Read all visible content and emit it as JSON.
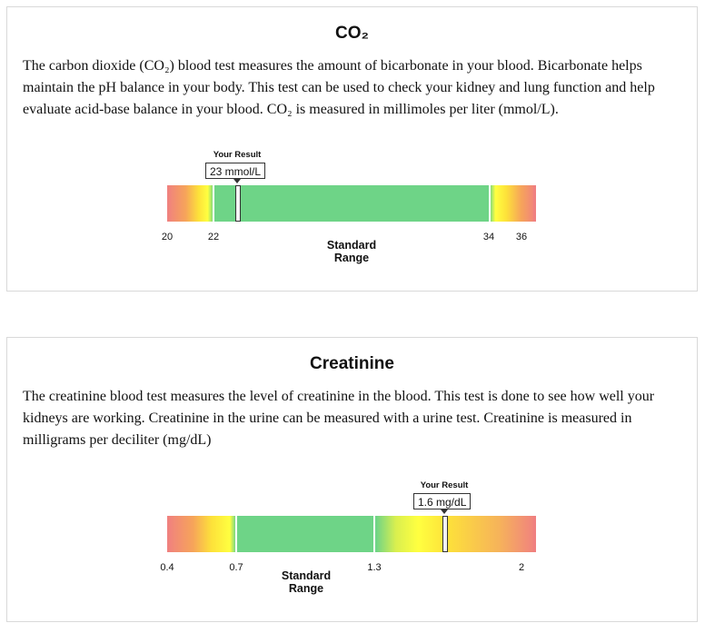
{
  "cards": [
    {
      "title": "CO₂",
      "description": "The carbon dioxide (CO₂) blood test measures the amount of bicarbonate in your blood. Bicarbonate helps maintain the pH balance in your body. This test can be used to check your kidney and lung function and help evaluate acid-base balance in your blood. CO₂ is measured in millimoles per liter (mmol/L).",
      "gauge": {
        "your_result_label": "Your Result",
        "result_value": "23 mmol/L",
        "result_numeric": 23,
        "ticks": [
          "20",
          "22",
          "34",
          "36"
        ],
        "standard_range_line1": "Standard",
        "standard_range_line2": "Range",
        "colors": {
          "low": "#f08080",
          "warn": "#ffff40",
          "normal": "#6ed487"
        }
      }
    },
    {
      "title": "Creatinine",
      "description": "The creatinine blood test measures the level of creatinine in the blood. This test is done to see how well your kidneys are working. Creatinine in the urine can be measured with a urine test. Creatinine is measured in milligrams per deciliter (mg/dL)",
      "gauge": {
        "your_result_label": "Your Result",
        "result_value": "1.6 mg/dL",
        "result_numeric": 1.6,
        "ticks": [
          "0.4",
          "0.7",
          "1.3",
          "2"
        ],
        "standard_range_line1": "Standard",
        "standard_range_line2": "Range",
        "colors": {
          "low": "#f08080",
          "warn": "#ffff40",
          "normal": "#6ed487"
        }
      }
    }
  ]
}
